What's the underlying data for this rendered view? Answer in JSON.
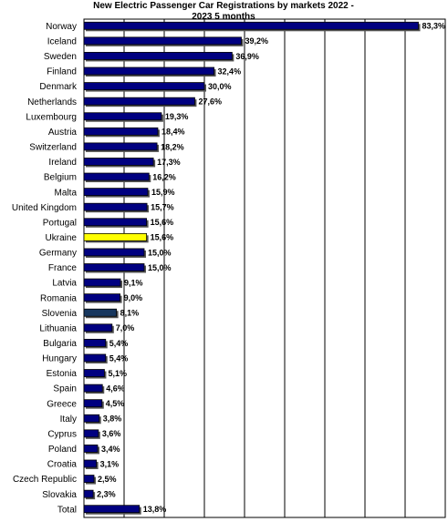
{
  "chart_data": {
    "type": "hbar",
    "title": "New Electric Passenger Car Registrations by markets 2022 - 2023 5 months",
    "categories": [
      "Norway",
      "Iceland",
      "Sweden",
      "Finland",
      "Denmark",
      "Netherlands",
      "Luxembourg",
      "Austria",
      "Switzerland",
      "Ireland",
      "Belgium",
      "Malta",
      "United Kingdom",
      "Portugal",
      "Ukraine",
      "Germany",
      "France",
      "Latvia",
      "Romania",
      "Slovenia",
      "Lithuania",
      "Bulgaria",
      "Hungary",
      "Estonia",
      "Spain",
      "Greece",
      "Italy",
      "Cyprus",
      "Poland",
      "Croatia",
      "Czech Republic",
      "Slovakia",
      "Total"
    ],
    "values": [
      83.3,
      39.2,
      36.9,
      32.4,
      30.0,
      27.6,
      19.3,
      18.4,
      18.2,
      17.3,
      16.2,
      15.9,
      15.7,
      15.6,
      15.6,
      15.0,
      15.0,
      9.1,
      9.0,
      8.1,
      7.0,
      5.4,
      5.4,
      5.1,
      4.6,
      4.5,
      3.8,
      3.6,
      3.4,
      3.1,
      2.5,
      2.3,
      13.8
    ],
    "value_labels": [
      "83,3%",
      "39,2%",
      "36,9%",
      "32,4%",
      "30,0%",
      "27,6%",
      "19,3%",
      "18,4%",
      "18,2%",
      "17,3%",
      "16,2%",
      "15,9%",
      "15,7%",
      "15,6%",
      "15,6%",
      "15,0%",
      "15,0%",
      "9,1%",
      "9,0%",
      "8,1%",
      "7,0%",
      "5,4%",
      "5,4%",
      "5,1%",
      "4,6%",
      "4,5%",
      "3,8%",
      "3,6%",
      "3,4%",
      "3,1%",
      "2,5%",
      "2,3%",
      "13,8%"
    ],
    "colors": [
      "#000080",
      "#000080",
      "#000080",
      "#000080",
      "#000080",
      "#000080",
      "#000080",
      "#000080",
      "#000080",
      "#000080",
      "#000080",
      "#000080",
      "#000080",
      "#000080",
      "#ffff00",
      "#000080",
      "#000080",
      "#000080",
      "#000080",
      "#17375e",
      "#000080",
      "#000080",
      "#000080",
      "#000080",
      "#000080",
      "#000080",
      "#000080",
      "#000080",
      "#000080",
      "#000080",
      "#000080",
      "#000080",
      "#000080"
    ],
    "xlim": [
      0,
      90
    ],
    "xticks": [
      0,
      10,
      20,
      30,
      40,
      50,
      60,
      70,
      80,
      90
    ],
    "grid": true
  }
}
